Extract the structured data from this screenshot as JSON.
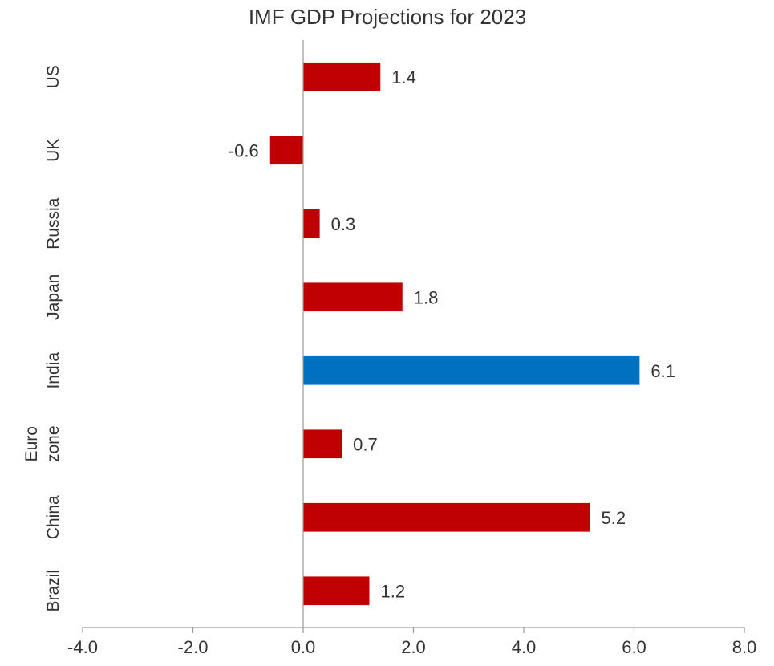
{
  "chart_data": {
    "type": "bar",
    "orientation": "horizontal",
    "title": "IMF GDP Projections for 2023",
    "xlabel": "",
    "ylabel": "",
    "xlim": [
      -4.0,
      8.0
    ],
    "x_ticks": [
      "-4.0",
      "-2.0",
      "0.0",
      "2.0",
      "4.0",
      "6.0",
      "8.0"
    ],
    "x_tick_values": [
      -4,
      -2,
      0,
      2,
      4,
      6,
      8
    ],
    "categories": [
      {
        "label": [
          "US"
        ],
        "value": 1.4,
        "value_label": "1.4",
        "color": "#c00000"
      },
      {
        "label": [
          "UK"
        ],
        "value": -0.6,
        "value_label": "-0.6",
        "color": "#c00000"
      },
      {
        "label": [
          "Russia"
        ],
        "value": 0.3,
        "value_label": "0.3",
        "color": "#c00000"
      },
      {
        "label": [
          "Japan"
        ],
        "value": 1.8,
        "value_label": "1.8",
        "color": "#c00000"
      },
      {
        "label": [
          "India"
        ],
        "value": 6.1,
        "value_label": "6.1",
        "color": "#0070c0"
      },
      {
        "label": [
          "Euro",
          "zone"
        ],
        "value": 0.7,
        "value_label": "0.7",
        "color": "#c00000"
      },
      {
        "label": [
          "China"
        ],
        "value": 5.2,
        "value_label": "5.2",
        "color": "#c00000"
      },
      {
        "label": [
          "Brazil"
        ],
        "value": 1.2,
        "value_label": "1.2",
        "color": "#c00000"
      }
    ],
    "grid": false,
    "legend": "none"
  }
}
